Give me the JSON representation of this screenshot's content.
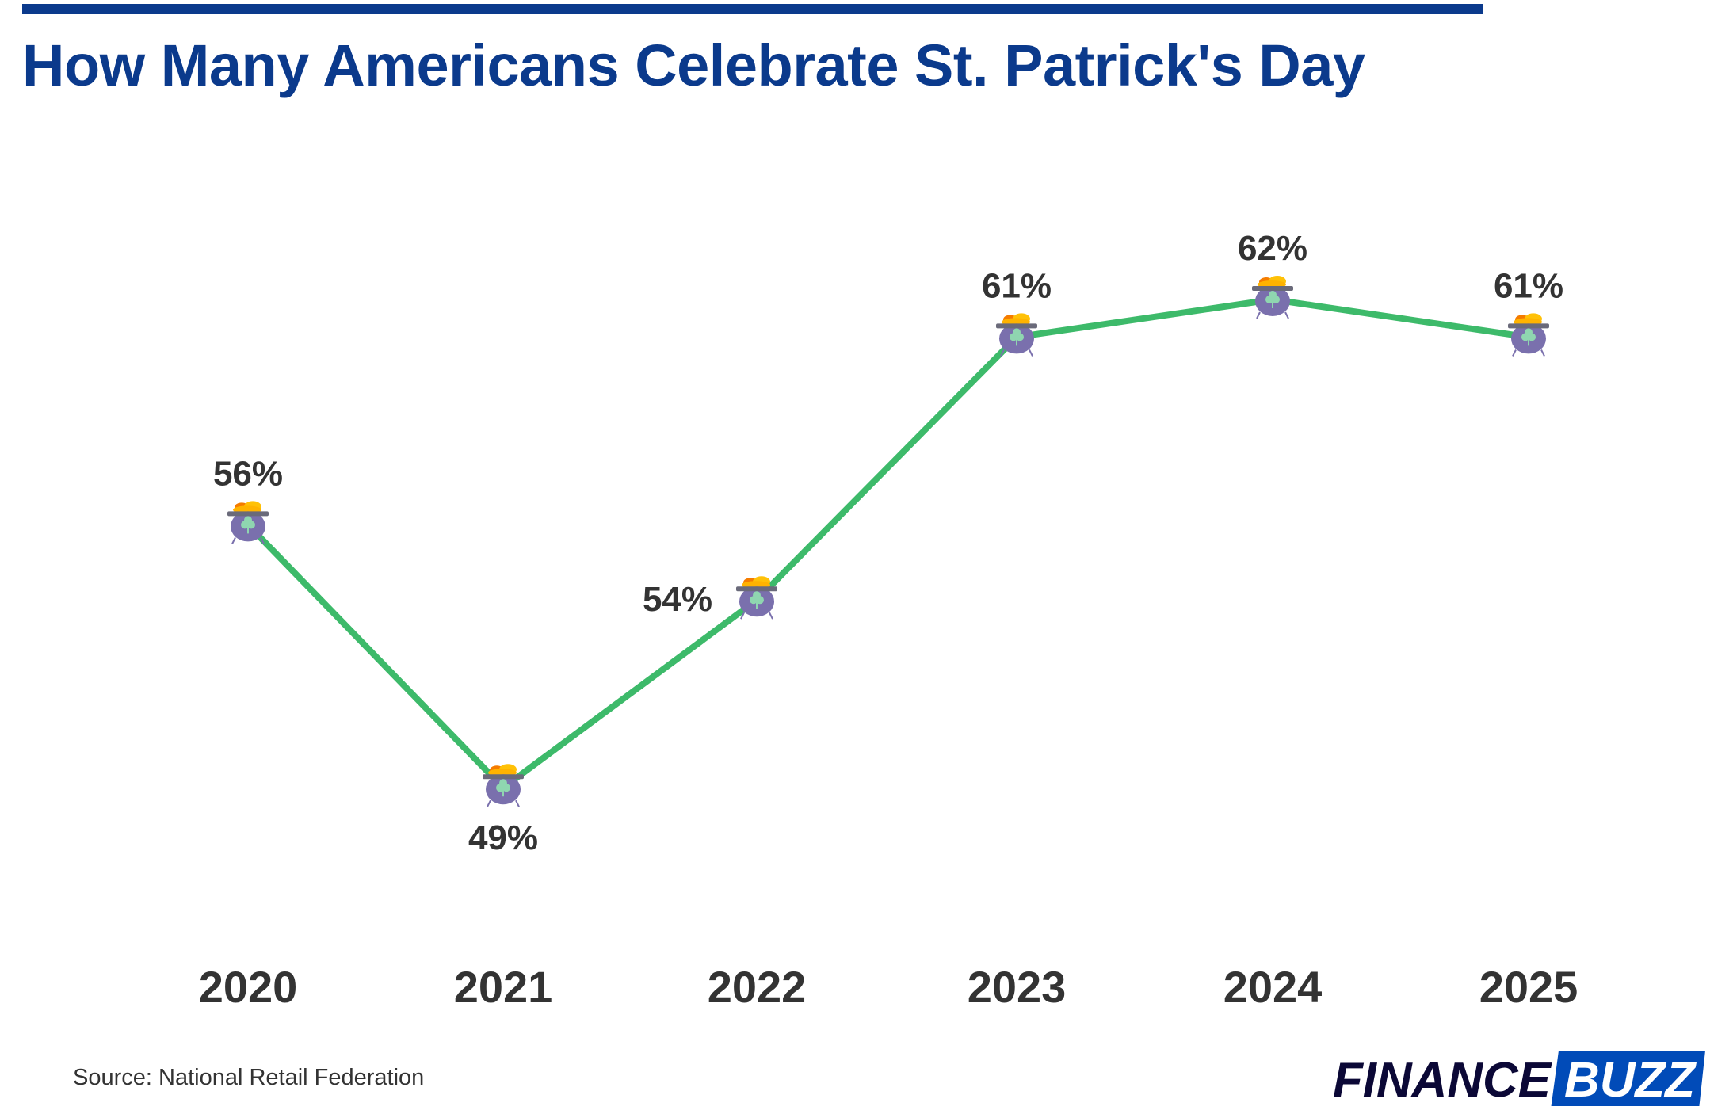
{
  "title": "How Many Americans Celebrate St. Patrick's Day",
  "source": "Source: National Retail Federation",
  "logo": {
    "text1": "FINANCE",
    "text2": "BUZZ"
  },
  "colors": {
    "title": "#0b3a8c",
    "line": "#3dba6a",
    "text": "#333333",
    "logo_dark": "#0b0836",
    "logo_blue": "#014bb8"
  },
  "marker_icon": "pot-of-gold-shamrock-icon",
  "chart_data": {
    "type": "line",
    "categories": [
      "2020",
      "2021",
      "2022",
      "2023",
      "2024",
      "2025"
    ],
    "values": [
      56,
      49,
      54,
      61,
      62,
      61
    ],
    "labels": [
      "56%",
      "49%",
      "54%",
      "61%",
      "62%",
      "61%"
    ],
    "title": "How Many Americans Celebrate St. Patrick's Day",
    "xlabel": "",
    "ylabel": "",
    "grid": false,
    "legend": "none"
  }
}
